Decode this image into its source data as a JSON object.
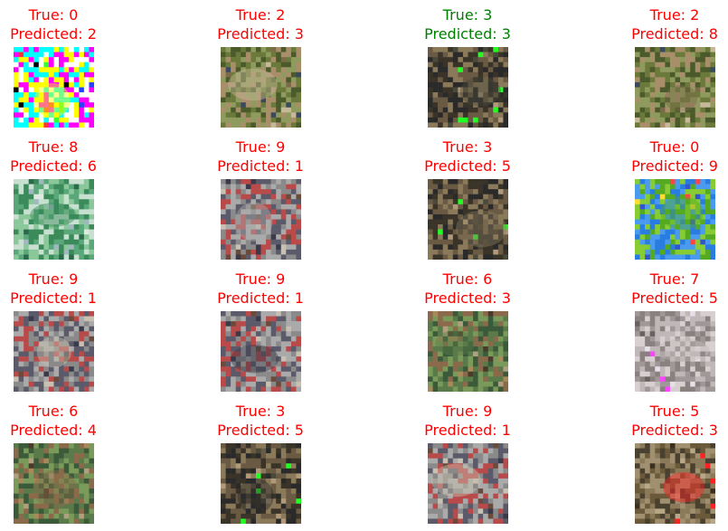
{
  "colors": {
    "correct": "#008000",
    "incorrect": "#ff0000"
  },
  "labels": {
    "true_prefix": "True: ",
    "predicted_prefix": "Predicted: "
  },
  "samples": [
    {
      "true": "0",
      "predicted": "2",
      "thumb_icon": "noisy-airplane-image"
    },
    {
      "true": "2",
      "predicted": "3",
      "thumb_icon": "bird-image"
    },
    {
      "true": "3",
      "predicted": "3",
      "thumb_icon": "cat-image"
    },
    {
      "true": "2",
      "predicted": "8",
      "thumb_icon": "bird-image"
    },
    {
      "true": "8",
      "predicted": "6",
      "thumb_icon": "ship-image"
    },
    {
      "true": "9",
      "predicted": "1",
      "thumb_icon": "truck-image"
    },
    {
      "true": "3",
      "predicted": "5",
      "thumb_icon": "cat-image"
    },
    {
      "true": "0",
      "predicted": "9",
      "thumb_icon": "airplane-image"
    },
    {
      "true": "9",
      "predicted": "1",
      "thumb_icon": "truck-image"
    },
    {
      "true": "9",
      "predicted": "1",
      "thumb_icon": "truck-image"
    },
    {
      "true": "6",
      "predicted": "3",
      "thumb_icon": "frog-image"
    },
    {
      "true": "7",
      "predicted": "5",
      "thumb_icon": "horse-image"
    },
    {
      "true": "6",
      "predicted": "4",
      "thumb_icon": "frog-image"
    },
    {
      "true": "3",
      "predicted": "5",
      "thumb_icon": "cat-image"
    },
    {
      "true": "9",
      "predicted": "1",
      "thumb_icon": "truck-image"
    },
    {
      "true": "5",
      "predicted": "3",
      "thumb_icon": "dog-image"
    }
  ]
}
